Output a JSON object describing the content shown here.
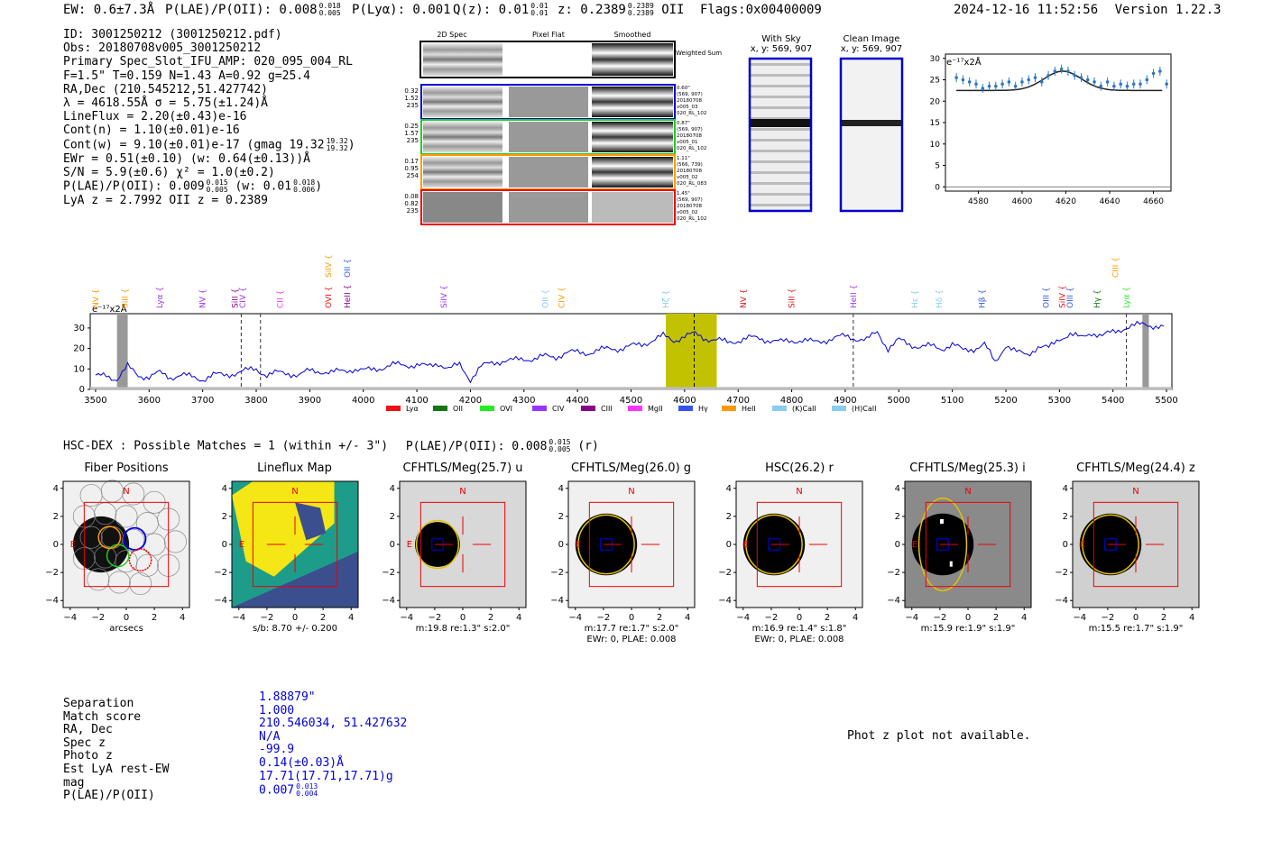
{
  "header": {
    "ew": "EW: 0.6±7.3Å",
    "plae": "P(LAE)/P(OII): 0.008",
    "plae_hi": "0.018",
    "plae_lo": "0.005",
    "plya": "P(Lyα): 0.001",
    "qz": "Q(z): 0.01",
    "qz_hi": "0.01",
    "qz_lo": "0.01",
    "z": "z: 0.2389",
    "z_hi": "0.2389",
    "z_lo": "0.2389",
    "z_line": "OII",
    "flags": "Flags:0x00400009",
    "datetime": "2024-12-16 11:52:56",
    "version": "Version 1.22.3"
  },
  "info": {
    "l1": "ID: 3001250212 (3001250212.pdf)",
    "l2": "Obs: 20180708v005_3001250212",
    "l3": "Primary Spec_Slot_IFU_AMP: 020_095_004_RL",
    "l4": "F=1.5\"  T=0.159  N=1.43  A=0.92  g=25.4",
    "l5": "RA,Dec (210.545212,51.427742)",
    "l6": "λ = 4618.55Å  σ = 5.75(±1.24)Å",
    "l7": "LineFlux = 2.20(±0.43)e-16",
    "l8": "Cont(n) = 1.10(±0.01)e-16",
    "l9": "Cont(w) = 9.10(±0.01)e-17 (gmag 19.32",
    "l9_hi": "19.32",
    "l9_lo": "19.32",
    "l9_end": ")",
    "l10": "EWr = 0.51(±0.10) (w: 0.64(±0.13))Å",
    "l11": "S/N = 5.9(±0.6)  χ² = 1.0(±0.2)",
    "l12": "P(LAE)/P(OII): 0.009",
    "l12_hi": "0.015",
    "l12_lo": "0.005",
    "l12_mid": "(w: 0.01",
    "l12_hi2": "0.018",
    "l12_lo2": "0.006",
    "l12_end": ")",
    "l13": "LyA z = 2.7992  OII z = 0.2389"
  },
  "cutouts": {
    "col_titles": [
      "2D Spec",
      "Pixel Flat",
      "Smoothed"
    ],
    "weighted_sum": "Weighted Sum",
    "rows": [
      {
        "color": "#0000cc",
        "left": [
          "0.32",
          "1.52",
          "235"
        ],
        "right": [
          "0.60\"",
          "(569, 907)",
          "20180708",
          "v005_03",
          "020_RL_102"
        ]
      },
      {
        "color": "#22cc22",
        "left": [
          "0.25",
          "1.57",
          "235"
        ],
        "right": [
          "0.87\"",
          "(569, 907)",
          "20180708",
          "v005_01",
          "020_RL_102"
        ]
      },
      {
        "color": "#ff9900",
        "left": [
          "0.17",
          "0.95",
          "254"
        ],
        "right": [
          "1.11\"",
          "(566, 739)",
          "20180708",
          "v005_02",
          "020_RL_083"
        ]
      },
      {
        "color": "#ee0000",
        "left": [
          "0.08",
          "0.82",
          "235"
        ],
        "right": [
          "1.45\"",
          "(569, 907)",
          "20180708",
          "v005_02",
          "020_RL_102"
        ]
      }
    ]
  },
  "sky": {
    "with_sky": "With Sky",
    "with_sky_xy": "x, y: 569, 907",
    "clean": "Clean Image",
    "clean_xy": "x, y: 569, 907"
  },
  "zoom_plot": {
    "unit": "e⁻¹⁷x2Å",
    "yticks": [
      "0",
      "5",
      "10",
      "15",
      "20",
      "25",
      "30"
    ],
    "xticks": [
      "4580",
      "4600",
      "4620",
      "4640",
      "4660"
    ]
  },
  "chart_data": [
    {
      "type": "scatter",
      "xlim": [
        4565,
        4668
      ],
      "ylim": [
        -1,
        31
      ],
      "x": [
        4570,
        4573,
        4576,
        4579,
        4582,
        4585,
        4588,
        4591,
        4594,
        4597,
        4600,
        4603,
        4606,
        4609,
        4612,
        4615,
        4618,
        4621,
        4624,
        4627,
        4630,
        4633,
        4636,
        4639,
        4642,
        4645,
        4648,
        4651,
        4654,
        4657,
        4660,
        4663,
        4666
      ],
      "y": [
        25.5,
        25,
        24.5,
        24,
        23,
        23.5,
        23.5,
        24,
        24.5,
        23.5,
        24.5,
        25,
        25.5,
        24.5,
        26,
        27,
        27.5,
        27,
        26,
        25.5,
        25,
        24.5,
        23.5,
        24.5,
        23.5,
        24,
        23.5,
        24,
        24,
        25,
        26.5,
        27,
        24
      ]
    },
    {
      "type": "line",
      "xlim": [
        3490,
        5510
      ],
      "ylim": [
        0,
        37
      ],
      "unit": "e⁻¹⁷x2Å",
      "xticks": [
        "3500",
        "3600",
        "3700",
        "3800",
        "3900",
        "4000",
        "4100",
        "4200",
        "4300",
        "4400",
        "4500",
        "4600",
        "4700",
        "4800",
        "4900",
        "5000",
        "5100",
        "5200",
        "5300",
        "5400",
        "5500"
      ],
      "yticks": [
        "0",
        "10",
        "20",
        "30"
      ],
      "x": [
        3500,
        3520,
        3540,
        3560,
        3580,
        3600,
        3620,
        3640,
        3660,
        3680,
        3700,
        3720,
        3740,
        3760,
        3780,
        3800,
        3820,
        3840,
        3860,
        3880,
        3900,
        3920,
        3940,
        3960,
        3980,
        4000,
        4020,
        4040,
        4060,
        4080,
        4100,
        4120,
        4140,
        4160,
        4180,
        4200,
        4220,
        4240,
        4260,
        4280,
        4300,
        4320,
        4340,
        4360,
        4380,
        4400,
        4420,
        4440,
        4460,
        4480,
        4500,
        4520,
        4540,
        4560,
        4580,
        4600,
        4620,
        4640,
        4660,
        4680,
        4700,
        4720,
        4740,
        4760,
        4780,
        4800,
        4820,
        4840,
        4860,
        4880,
        4900,
        4920,
        4940,
        4960,
        4980,
        5000,
        5020,
        5040,
        5060,
        5080,
        5100,
        5120,
        5140,
        5160,
        5180,
        5200,
        5220,
        5240,
        5260,
        5280,
        5300,
        5320,
        5340,
        5360,
        5380,
        5400,
        5420,
        5440,
        5460,
        5480,
        5500
      ],
      "y": [
        6,
        7,
        5,
        11,
        7,
        6,
        8,
        6,
        7,
        6,
        5,
        7,
        7,
        8,
        9,
        10,
        7,
        8,
        8,
        7,
        9,
        9,
        8,
        9,
        10,
        9,
        10,
        11,
        12,
        12,
        12,
        11,
        13,
        10,
        12,
        5,
        11,
        13,
        14,
        14,
        15,
        15,
        16,
        16,
        18,
        18,
        18,
        19,
        20,
        20,
        21,
        22,
        24,
        26,
        24,
        26,
        27,
        25,
        24,
        23,
        24,
        25,
        25,
        24,
        23,
        24,
        24,
        23,
        24,
        25,
        26,
        25,
        24,
        28,
        20,
        24,
        22,
        21,
        21,
        20,
        22,
        19,
        20,
        22,
        13,
        22,
        18,
        17,
        21,
        20,
        25,
        27,
        25,
        28,
        26,
        28,
        30,
        31,
        32,
        31,
        30
      ]
    }
  ],
  "spectrum": {
    "lines_low": [
      "NV",
      "SiII",
      "Lyα",
      "NV",
      "SiII",
      "CIV",
      "CII",
      "OVI",
      "HeII",
      "SiIV",
      "OII",
      "CIV",
      "Hζ",
      "NV",
      "SiII",
      "HeII",
      "Hε",
      "Hδ",
      "Hβ",
      "OIII",
      "SiIV",
      "OIII",
      "Hγ",
      "Lyα"
    ],
    "lines_high": [
      "SiIV",
      "OII",
      "CIII"
    ],
    "legend": [
      "Lyα",
      "OII",
      "OVI",
      "CIV",
      "CIII",
      "MgII",
      "Hγ",
      "HeII",
      "(K)CaII",
      "(H)CaII"
    ],
    "legend_colors": [
      "#ee1111",
      "#117711",
      "#22ee22",
      "#9933ff",
      "#880088",
      "#ff33ff",
      "#3355ee",
      "#ff9900",
      "#88ccee",
      "#88ccee"
    ]
  },
  "hsc": {
    "title": "HSC-DEX : Possible Matches = 1 (within +/- 3\")",
    "plae": "P(LAE)/P(OII): 0.008",
    "plae_hi": "0.015",
    "plae_lo": "0.005",
    "band": "(r)"
  },
  "panels": [
    {
      "title": "Fiber Positions",
      "cap1": "arcsecs",
      "cap2": ""
    },
    {
      "title": "Lineflux Map",
      "cap1": "s/b: 8.70 +/- 0.200",
      "cap2": ""
    },
    {
      "title": "CFHTLS/Meg(25.7) u",
      "cap1": "m:19.8  re:1.3\"  s:2.0\"",
      "cap2": ""
    },
    {
      "title": "CFHTLS/Meg(26.0) g",
      "cap1": "m:17.7  re:1.7\"  s:2.0\"",
      "cap2": "EWr: 0, PLAE: 0.008"
    },
    {
      "title": "HSC(26.2) r",
      "cap1": "m:16.9  re:1.4\"  s:1.8\"",
      "cap2": "EWr: 0, PLAE: 0.008"
    },
    {
      "title": "CFHTLS/Meg(25.3) i",
      "cap1": "m:15.9  re:1.9\"  s:1.9\"",
      "cap2": ""
    },
    {
      "title": "CFHTLS/Meg(24.4) z",
      "cap1": "m:15.5  re:1.7\"  s:1.9\"",
      "cap2": ""
    }
  ],
  "panel_axis": {
    "xticks": [
      "−4",
      "−2",
      "0",
      "2",
      "4"
    ],
    "yticks": [
      "4",
      "2",
      "0",
      "−2",
      "−4"
    ],
    "north": "N",
    "east": "E"
  },
  "match": {
    "labels": [
      "Separation",
      "Match score",
      "RA, Dec",
      "Spec z",
      "Photo z",
      "Est LyA rest-EW",
      "mag",
      "P(LAE)/P(OII)"
    ],
    "values": [
      "1.88879\"",
      "1.000",
      "210.546034, 51.427632",
      "N/A",
      "-99.9",
      "0.14(±0.03)Å",
      "17.71(17.71,17.71)g",
      "0.007"
    ],
    "plae_hi": "0.013",
    "plae_lo": "0.004",
    "photz_msg": "Phot z plot not available."
  }
}
